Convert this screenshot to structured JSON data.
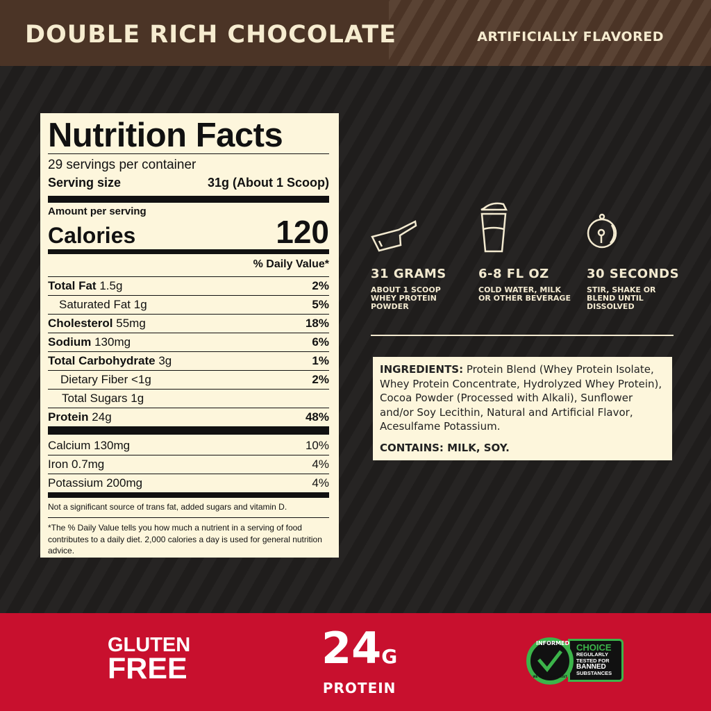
{
  "header": {
    "flavor": "DOUBLE RICH CHOCOLATE",
    "note": "ARTIFICIALLY FLAVORED"
  },
  "nutrition": {
    "title": "Nutrition Facts",
    "servings": "29 servings per container",
    "serving_size_label": "Serving size",
    "serving_size": "31g (About 1 Scoop)",
    "amount_label": "Amount per serving",
    "calories_label": "Calories",
    "calories": "120",
    "dv_header": "% Daily Value*",
    "rows": [
      {
        "name": "Total Fat",
        "amount": "1.5g",
        "dv": "2%"
      },
      {
        "name": "Saturated Fat",
        "amount": "1g",
        "dv": "5%"
      },
      {
        "name": "Cholesterol",
        "amount": "55mg",
        "dv": "18%"
      },
      {
        "name": "Sodium",
        "amount": "130mg",
        "dv": "6%"
      },
      {
        "name": "Total Carbohydrate",
        "amount": "3g",
        "dv": "1%"
      },
      {
        "name": "Dietary Fiber",
        "amount": "<1g",
        "dv": "2%"
      },
      {
        "name": "Total Sugars",
        "amount": "1g",
        "dv": ""
      },
      {
        "name": "Protein",
        "amount": "24g",
        "dv": "48%"
      }
    ],
    "minerals": [
      {
        "name": "Calcium 130mg",
        "dv": "10%"
      },
      {
        "name": "Iron 0.7mg",
        "dv": "4%"
      },
      {
        "name": "Potassium 200mg",
        "dv": "4%"
      }
    ],
    "note1": "Not a significant source of trans fat, added sugars and vitamin D.",
    "note2": "*The % Daily Value tells you how much a nutrient in a serving of food contributes to a daily diet. 2,000 calories a day is used for general nutrition advice."
  },
  "directions": [
    {
      "icon": "scoop-icon",
      "title": "31 GRAMS",
      "desc": "ABOUT 1 SCOOP WHEY PROTEIN POWDER"
    },
    {
      "icon": "shaker-icon",
      "title": "6-8 FL OZ",
      "desc": "COLD WATER, MILK OR OTHER BEVERAGE"
    },
    {
      "icon": "timer-icon",
      "title": "30 SECONDS",
      "desc": "STIR, SHAKE OR BLEND UNTIL DISSOLVED"
    }
  ],
  "ingredients": {
    "label": "INGREDIENTS:",
    "text": " Protein Blend (Whey Protein Isolate, Whey Protein Concentrate, Hydrolyzed Whey Protein), Cocoa Powder (Processed with Alkali), Sunflower and/or Soy Lecithin, Natural and Artificial Flavor, Acesulfame Potassium.",
    "contains": "CONTAINS: MILK, SOY."
  },
  "footer": {
    "gluten1": "GLUTEN",
    "gluten2": "FREE",
    "protein_num": "24",
    "protein_unit": "G",
    "protein_label": "PROTEIN",
    "badge": {
      "ring": "INFORMED",
      "ring_bottom": "WE TEST · YOU TRUST",
      "choice": "CHOICE",
      "l1": "REGULARLY",
      "l2": "TESTED FOR",
      "l3": "BANNED",
      "l4": "SUBSTANCES"
    }
  },
  "colors": {
    "header": "#4b3426",
    "background": "#1f1d1c",
    "cream": "#fdf6dc",
    "footer": "#c8102e",
    "badge_green": "#3cb44a"
  }
}
